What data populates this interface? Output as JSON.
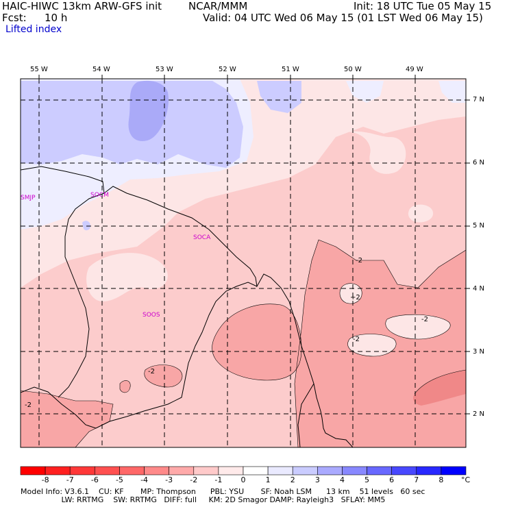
{
  "header": {
    "model": "HAIC-HIWC 13km ARW-GFS init",
    "org": "NCAR/MMM",
    "init": "Init: 18 UTC Tue 05 May 15",
    "fcst_label": "Fcst:",
    "fcst_value": "10 h",
    "valid": "Valid: 04 UTC Wed 06 May 15 (01 LST Wed 06 May 15)",
    "field": "Lifted index"
  },
  "map": {
    "lon_labels": [
      "55 W",
      "54 W",
      "53 W",
      "52 W",
      "51 W",
      "50 W",
      "49 W"
    ],
    "lat_labels": [
      "7 N",
      "6 N",
      "5 N",
      "4 N",
      "3 N",
      "2 N"
    ],
    "stations": [
      "SMJP",
      "SOCM",
      "SOCA",
      "SOOS"
    ],
    "contour_labels": [
      "-2",
      "+2",
      "-2",
      "-2",
      "-2",
      "-2",
      "-2"
    ]
  },
  "colorbar": {
    "ticks": [
      "-8",
      "-7",
      "-6",
      "-5",
      "-4",
      "-3",
      "-2",
      "-1",
      "0",
      "1",
      "2",
      "3",
      "4",
      "5",
      "6",
      "7",
      "8"
    ],
    "unit": "°C",
    "colors": [
      "#ff0000",
      "#ff2020",
      "#ff3838",
      "#ff5050",
      "#ff6868",
      "#ff8a8a",
      "#ffaaaa",
      "#ffcaca",
      "#ffeaea",
      "#eaeaff",
      "#caccff",
      "#aaaaff",
      "#8888ff",
      "#6868ff",
      "#4848ff",
      "#2828ff",
      "#0000ff"
    ]
  },
  "footer": {
    "line1": "Model Info: V3.6.1    CU: KF       MP: Thompson      PBL: YSU       SF: Noah LSM      13 km    51 levels   60 sec",
    "line2": "                 LW: RRTMG    SW: RRTMG   DIFF: full     KM: 2D Smagor DAMP: Rayleigh3   SFLAY: MM5"
  }
}
